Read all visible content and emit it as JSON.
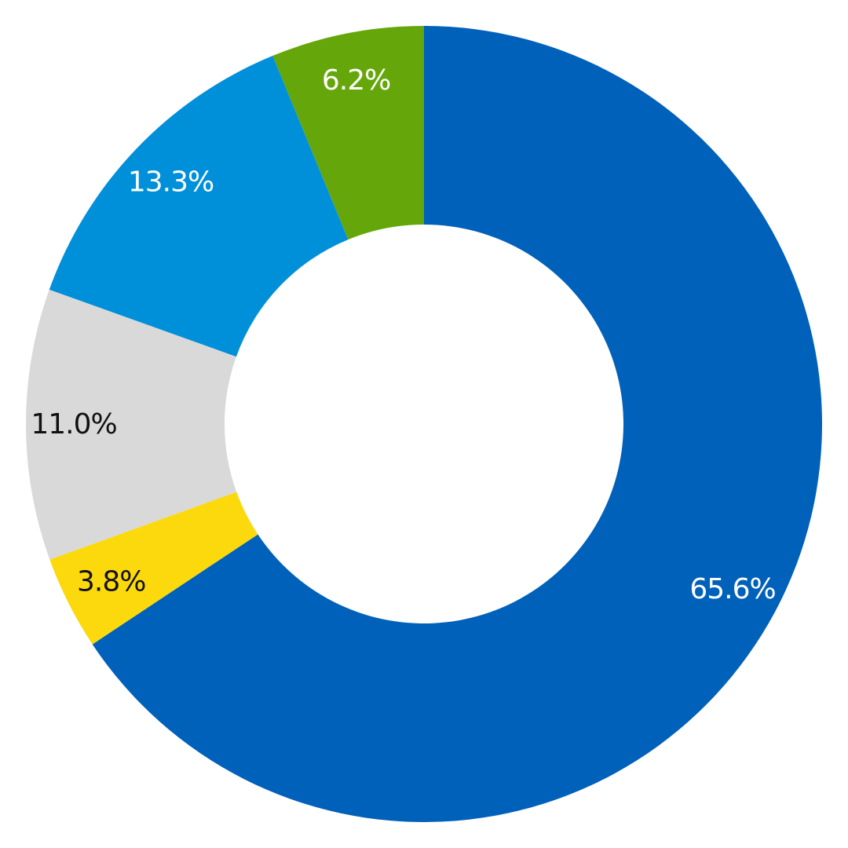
{
  "chart_data": {
    "type": "pie",
    "style": "donut",
    "start_angle_deg": 0,
    "direction": "clockwise",
    "slices": [
      {
        "label": "65.6%",
        "value": 65.6,
        "color": "#0061BA",
        "label_color": "#ffffff"
      },
      {
        "label": "3.8%",
        "value": 3.8,
        "color": "#FCD90D",
        "label_color": "#111111"
      },
      {
        "label": "11.0%",
        "value": 11.0,
        "color": "#D9D9D9",
        "label_color": "#111111"
      },
      {
        "label": "13.3%",
        "value": 13.3,
        "color": "#0090DA",
        "label_color": "#ffffff"
      },
      {
        "label": "6.2%",
        "value": 6.2,
        "color": "#65A70A",
        "label_color": "#ffffff"
      }
    ],
    "legend": "none",
    "background_color": "#ffffff"
  }
}
